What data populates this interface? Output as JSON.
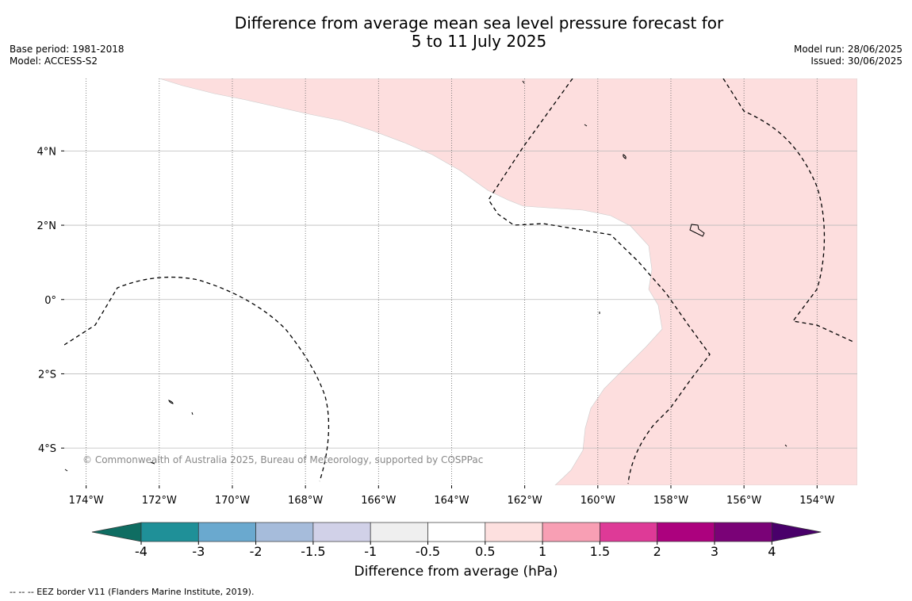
{
  "title": {
    "line1": "Difference from average mean sea level pressure forecast for",
    "line2": "5 to 11 July 2025"
  },
  "meta_left": {
    "base_period": "Base period: 1981-2018",
    "model": "Model: ACCESS-S2"
  },
  "meta_right": {
    "model_run": "Model run: 28/06/2025",
    "issued": "Issued: 30/06/2025"
  },
  "map": {
    "lon_range": [
      -174.6,
      -152.9
    ],
    "lat_range": [
      -5.0,
      5.95
    ],
    "lat_ticks": [
      {
        "value": 4,
        "label": "4°N"
      },
      {
        "value": 2,
        "label": "2°N"
      },
      {
        "value": 0,
        "label": "0°"
      },
      {
        "value": -2,
        "label": "2°S"
      },
      {
        "value": -4,
        "label": "4°S"
      }
    ],
    "lon_ticks": [
      {
        "value": -174,
        "label": "174°W"
      },
      {
        "value": -172,
        "label": "172°W"
      },
      {
        "value": -170,
        "label": "170°W"
      },
      {
        "value": -168,
        "label": "168°W"
      },
      {
        "value": -166,
        "label": "166°W"
      },
      {
        "value": -164,
        "label": "164°W"
      },
      {
        "value": -162,
        "label": "162°W"
      },
      {
        "value": -160,
        "label": "160°W"
      },
      {
        "value": -158,
        "label": "158°W"
      },
      {
        "value": -156,
        "label": "156°W"
      },
      {
        "value": -154,
        "label": "154°W"
      }
    ],
    "anomaly_fill_color": "#fddede",
    "credit": "© Commonwealth of Australia 2025, Bureau of Meteorology, supported by COSPPac"
  },
  "colorbar": {
    "title": "Difference from average (hPa)",
    "bins": [
      {
        "color": "#0f6d62"
      },
      {
        "color": "#1f9098"
      },
      {
        "color": "#6aa9cf"
      },
      {
        "color": "#a6bcdb"
      },
      {
        "color": "#d1d1e8"
      },
      {
        "color": "#efefef"
      },
      {
        "color": "#ffffff"
      },
      {
        "color": "#fde0df"
      },
      {
        "color": "#f89fb4"
      },
      {
        "color": "#de3a97"
      },
      {
        "color": "#ac017e"
      },
      {
        "color": "#7a0277"
      },
      {
        "color": "#49006a"
      }
    ],
    "tick_labels": [
      "-4",
      "-3",
      "-2",
      "-1.5",
      "-1",
      "-0.5",
      "0.5",
      "1",
      "1.5",
      "2",
      "3",
      "4"
    ]
  },
  "footnote": "--  --  -- EEZ border V11 (Flanders Marine Institute, 2019)."
}
